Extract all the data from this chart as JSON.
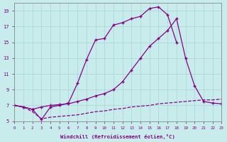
{
  "xlabel": "Windchill (Refroidissement éolien,°C)",
  "bg_color": "#c8ecec",
  "grid_color": "#a8d4d4",
  "line_color": "#880088",
  "xmin": 0,
  "xmax": 23,
  "ymin": 5,
  "ymax": 20,
  "yticks": [
    5,
    7,
    9,
    11,
    13,
    15,
    17,
    19
  ],
  "xticks": [
    0,
    1,
    2,
    3,
    4,
    5,
    6,
    7,
    8,
    9,
    10,
    11,
    12,
    13,
    14,
    15,
    16,
    17,
    18,
    19,
    20,
    21,
    22,
    23
  ],
  "curve1": {
    "x": [
      0,
      1,
      2,
      3,
      4,
      5,
      6,
      7,
      8,
      9,
      10,
      11,
      12,
      13,
      14,
      15,
      16,
      17,
      18
    ],
    "y": [
      7.0,
      6.8,
      6.5,
      5.2,
      6.8,
      7.0,
      7.3,
      9.8,
      12.8,
      15.3,
      15.5,
      17.2,
      17.5,
      18.0,
      18.3,
      19.3,
      19.5,
      18.5,
      15.0
    ]
  },
  "curve2": {
    "x": [
      0,
      1,
      2,
      3,
      4,
      5,
      6,
      7,
      8,
      9,
      10,
      11,
      12,
      13,
      14,
      15,
      16,
      17,
      18,
      19,
      20,
      21,
      22,
      23
    ],
    "y": [
      7.0,
      6.8,
      6.5,
      6.8,
      7.0,
      7.1,
      7.2,
      7.5,
      7.8,
      8.2,
      8.5,
      9.0,
      10.0,
      11.5,
      13.0,
      14.5,
      15.5,
      16.5,
      18.0,
      13.0,
      9.5,
      7.5,
      7.3,
      7.2
    ]
  },
  "curve3": {
    "x": [
      0,
      1,
      2,
      3,
      4,
      5,
      6,
      7,
      8,
      9,
      10,
      11,
      12,
      13,
      14,
      15,
      16,
      17,
      18,
      19,
      20,
      21,
      22,
      23
    ],
    "y": [
      7.0,
      6.8,
      6.2,
      5.3,
      5.5,
      5.6,
      5.7,
      5.8,
      6.0,
      6.2,
      6.3,
      6.5,
      6.6,
      6.8,
      6.9,
      7.0,
      7.2,
      7.3,
      7.4,
      7.5,
      7.6,
      7.7,
      7.7,
      7.8
    ]
  }
}
